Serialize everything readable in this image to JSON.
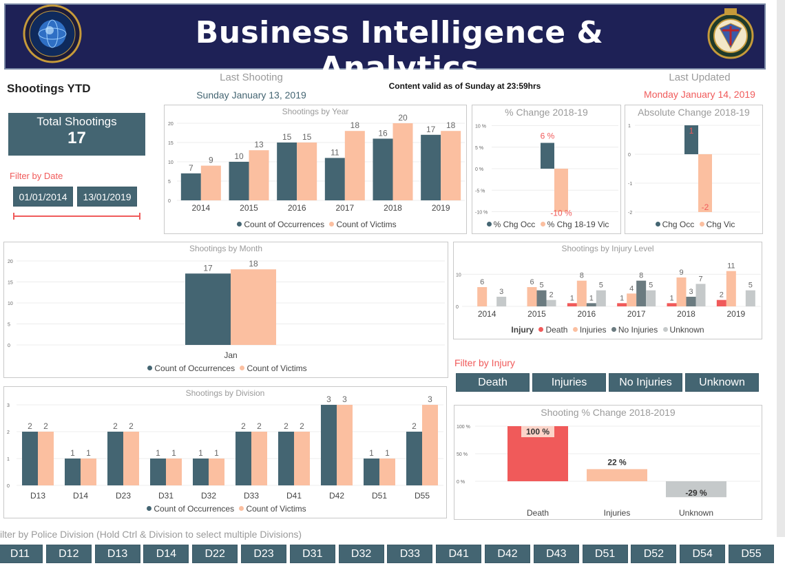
{
  "header": {
    "title": "Business Intelligence & Analytics",
    "logo_left_text": "BUSINESS INTELLIGENCE & ANALYTICS",
    "logo_right_top": "TORONTO",
    "logo_right_bottom": "POLICE"
  },
  "colors": {
    "occ": "#446572",
    "vic": "#fbbfa0",
    "death": "#f05a5a",
    "noinj": "#6b7b80",
    "unknown": "#c5c9ca",
    "accent": "#f05a5a",
    "header_bg": "#1e2156"
  },
  "page_title": "Shootings YTD",
  "last_shooting": {
    "label": "Last Shooting",
    "value": "Sunday January 13, 2019"
  },
  "content_valid": "Content valid as of Sunday at 23:59hrs",
  "last_updated": {
    "label": "Last Updated",
    "value": "Monday January 14, 2019"
  },
  "total": {
    "label": "Total Shootings",
    "value": "17"
  },
  "filter_date": {
    "label": "Filter by Date",
    "start": "01/01/2014",
    "end": "13/01/2019"
  },
  "filter_injury": {
    "label": "Filter by Injury",
    "buttons": [
      "Death",
      "Injuries",
      "No Injuries",
      "Unknown"
    ]
  },
  "division_filter": {
    "label": "ilter by Police Division (Hold Ctrl & Division to select multiple Divisions)",
    "buttons": [
      "D11",
      "D12",
      "D13",
      "D14",
      "D22",
      "D23",
      "D31",
      "D32",
      "D33",
      "D41",
      "D42",
      "D43",
      "D51",
      "D52",
      "D54",
      "D55"
    ]
  },
  "legends": {
    "occ": "Count of Occurrences",
    "vic": "Count of Victims",
    "pct_occ": "% Chg Occ",
    "pct_vic": "% Chg 18-19 Vic",
    "chg_occ": "Chg Occ",
    "chg_vic": "Chg Vic",
    "injury_title": "Injury",
    "death": "Death",
    "injuries": "Injuries",
    "noinj": "No Injuries",
    "unknown": "Unknown"
  },
  "chart_data": [
    {
      "id": "by_year",
      "type": "bar",
      "title": "Shootings by Year",
      "categories": [
        "2014",
        "2015",
        "2016",
        "2017",
        "2018",
        "2019"
      ],
      "series": [
        {
          "name": "Count of Occurrences",
          "values": [
            7,
            10,
            15,
            11,
            16,
            17
          ]
        },
        {
          "name": "Count of Victims",
          "values": [
            9,
            13,
            15,
            18,
            20,
            18
          ]
        }
      ],
      "ylim": [
        0,
        20
      ],
      "yticks": [
        "0",
        "5",
        "10",
        "15",
        "20"
      ]
    },
    {
      "id": "pct_change",
      "type": "bar",
      "title": "% Change 2018-19",
      "categories": [
        ""
      ],
      "series": [
        {
          "name": "% Chg Occ",
          "values": [
            6
          ],
          "label": "6 %"
        },
        {
          "name": "% Chg 18-19 Vic",
          "values": [
            -10
          ],
          "label": "-10 %"
        }
      ],
      "ylim": [
        -10,
        10
      ],
      "yticks": [
        "10 %",
        "5 %",
        "0 %",
        "-5 %",
        "-10 %"
      ]
    },
    {
      "id": "abs_change",
      "type": "bar",
      "title": "Absolute Change 2018-19",
      "categories": [
        ""
      ],
      "series": [
        {
          "name": "Chg Occ",
          "values": [
            1
          ],
          "label": "1"
        },
        {
          "name": "Chg Vic",
          "values": [
            -2
          ],
          "label": "-2"
        }
      ],
      "ylim": [
        -2,
        1
      ],
      "yticks": [
        "1",
        "0",
        "-1",
        "-2"
      ]
    },
    {
      "id": "by_month",
      "type": "bar",
      "title": "Shootings by Month",
      "categories": [
        "Jan"
      ],
      "series": [
        {
          "name": "Count of Occurrences",
          "values": [
            17
          ]
        },
        {
          "name": "Count of Victims",
          "values": [
            18
          ]
        }
      ],
      "ylim": [
        0,
        20
      ],
      "yticks": [
        "0",
        "5",
        "10",
        "15",
        "20"
      ]
    },
    {
      "id": "by_injury",
      "type": "bar",
      "title": "Shootings by Injury Level",
      "categories": [
        "2014",
        "2015",
        "2016",
        "2017",
        "2018",
        "2019"
      ],
      "series": [
        {
          "name": "Death",
          "values": [
            0,
            0,
            1,
            1,
            1,
            2
          ]
        },
        {
          "name": "Injuries",
          "values": [
            6,
            6,
            8,
            4,
            9,
            11
          ]
        },
        {
          "name": "No Injuries",
          "values": [
            0,
            5,
            1,
            8,
            3,
            0
          ]
        },
        {
          "name": "Unknown",
          "values": [
            3,
            2,
            5,
            5,
            7,
            5
          ]
        }
      ],
      "ylim": [
        0,
        12
      ],
      "yticks": [
        "0",
        "10"
      ]
    },
    {
      "id": "by_division",
      "type": "bar",
      "title": "Shootings by Division",
      "categories": [
        "D13",
        "D14",
        "D23",
        "D31",
        "D32",
        "D33",
        "D41",
        "D42",
        "D51",
        "D55"
      ],
      "series": [
        {
          "name": "Count of Occurrences",
          "values": [
            2,
            1,
            2,
            1,
            1,
            2,
            2,
            3,
            1,
            2
          ]
        },
        {
          "name": "Count of Victims",
          "values": [
            2,
            1,
            2,
            1,
            1,
            2,
            2,
            3,
            1,
            3
          ]
        }
      ],
      "ylim": [
        0,
        3
      ],
      "yticks": [
        "0",
        "1",
        "2",
        "3"
      ]
    },
    {
      "id": "pct_change_injury",
      "type": "bar",
      "title": "Shooting % Change 2018-2019",
      "categories": [
        "Death",
        "Injuries",
        "Unknown"
      ],
      "values": [
        100,
        22,
        -29
      ],
      "labels": [
        "100 %",
        "22 %",
        "-29 %"
      ],
      "ylim": [
        -30,
        100
      ],
      "yticks": [
        "100 %",
        "50 %",
        "0 %"
      ]
    }
  ]
}
